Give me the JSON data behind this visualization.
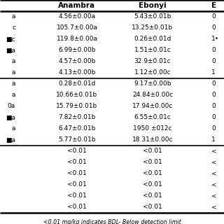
{
  "col_headers": [
    "Anambra",
    "Ebonyi",
    "E"
  ],
  "row_labels": [
    "a",
    "c",
    "■c",
    "■a",
    "a",
    "a",
    "a",
    "a",
    "0a",
    "■a",
    "a",
    "■a"
  ],
  "anambra_vals": [
    "4.56±0.00a",
    "105.7±0.00a",
    "119.8±0.00a",
    "6.99±0.00b",
    "4.57±0.00b",
    "4.13±0.00b",
    "0.28±0.01d",
    "10.66±0.01b",
    "15.79±0.01b",
    "7.82±0.01b",
    "6.47±0.01b",
    "5.77±0.01b"
  ],
  "ebonyi_vals": [
    "5.43±0.01b",
    "13.25±0.01b",
    "0.26±0.01d",
    "1.51±0.01c",
    "32.9±0.01c",
    "1.12±0.00c",
    "9.17±0.00b",
    "24.84±0.00c",
    "17.94±0.00c",
    "6.55±0.01c",
    "1950 ±012c",
    "18.31±0.00c"
  ],
  "e_vals": [
    "0",
    "0",
    "1•",
    "0",
    "0",
    "1",
    "0",
    "0",
    "0",
    "0",
    "0",
    "1"
  ],
  "bdl_anambra": [
    "<0.01",
    "<0.01",
    "<0.01",
    "<0.01",
    "<0.01",
    "<0.01"
  ],
  "bdl_ebonyi": [
    "<0.01",
    "<0.01",
    "<0.01",
    "<0.01",
    "<0.01",
    "<0.01"
  ],
  "bdl_e": [
    "<",
    "<",
    "<",
    "<",
    "<",
    "<"
  ],
  "footnote": "<0.01 mg/kg indicates BDL- Below detection limit",
  "bg_color": "#ffffff",
  "thick_lw": 1.8,
  "thin_lw": 1.2,
  "fs": 6.5,
  "hfs": 7.5
}
